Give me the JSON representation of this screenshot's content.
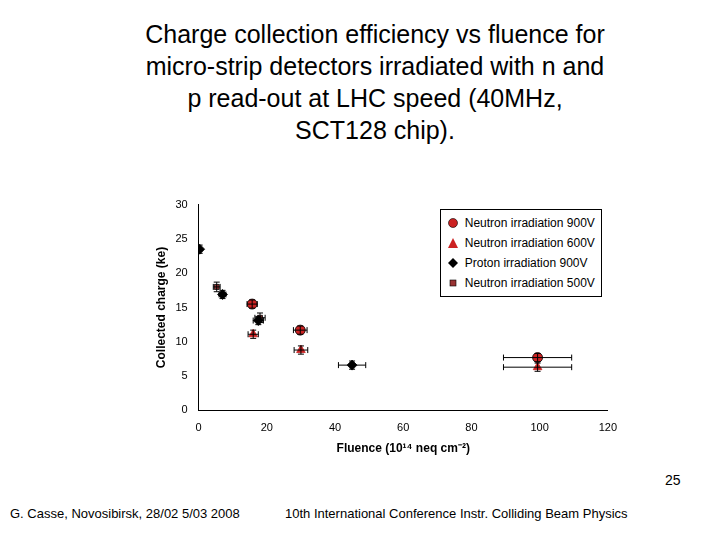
{
  "chart_data": {
    "type": "scatter",
    "title": "Charge collection efficiency vs fluence for micro-strip detectors irradiated with n and p read-out at LHC speed (40MHz, SCT128 chip).",
    "x_label": "Fluence (10¹⁴ neq cm⁻²)",
    "y_label": "Collected charge (ke)",
    "xlim": [
      0,
      120
    ],
    "xticks": [
      0,
      20,
      40,
      60,
      80,
      100,
      120
    ],
    "ylim": [
      0,
      30
    ],
    "yticks": [
      0,
      5,
      10,
      15,
      20,
      25,
      30
    ],
    "grid": false,
    "legend": "top-right",
    "series": [
      {
        "name": "Neutron irradiation 900V",
        "color": "#cc2222",
        "marker": "circle",
        "x": [
          15.7,
          29.8,
          99.4
        ],
        "values": [
          15.5,
          11.7,
          7.7
        ],
        "xerr": [
          1.5,
          2,
          10
        ],
        "yerr": [
          0.6,
          0.6,
          0.6
        ]
      },
      {
        "name": "Neutron irradiation 600V",
        "color": "#cc2222",
        "marker": "triangle",
        "x": [
          16,
          30,
          99.4
        ],
        "values": [
          11.1,
          8.8,
          6.3
        ],
        "xerr": [
          1.5,
          2,
          10
        ],
        "yerr": [
          0.6,
          0.6,
          0.6
        ]
      },
      {
        "name": "Proton irradiation 900V",
        "color": "#000000",
        "marker": "diamond",
        "x": [
          0.3,
          7,
          17.5,
          45
        ],
        "values": [
          23.5,
          16.9,
          13.1,
          6.6
        ],
        "xerr": [
          0.3,
          1,
          1.5,
          4
        ],
        "yerr": [
          0.6,
          0.6,
          0.6,
          0.6
        ]
      },
      {
        "name": "Neutron irradiation 500V",
        "color": "#993333",
        "marker": "square",
        "x": [
          5.3,
          18
        ],
        "values": [
          18,
          13.5
        ],
        "xerr": [
          1,
          1.5
        ],
        "yerr": [
          0.7,
          0.7
        ]
      }
    ]
  },
  "footer": {
    "left": "G. Casse, Novosibirsk, 28/02 5/03 2008",
    "middle": "10th International Conference Instr. Colliding Beam Physics",
    "page": "25"
  }
}
